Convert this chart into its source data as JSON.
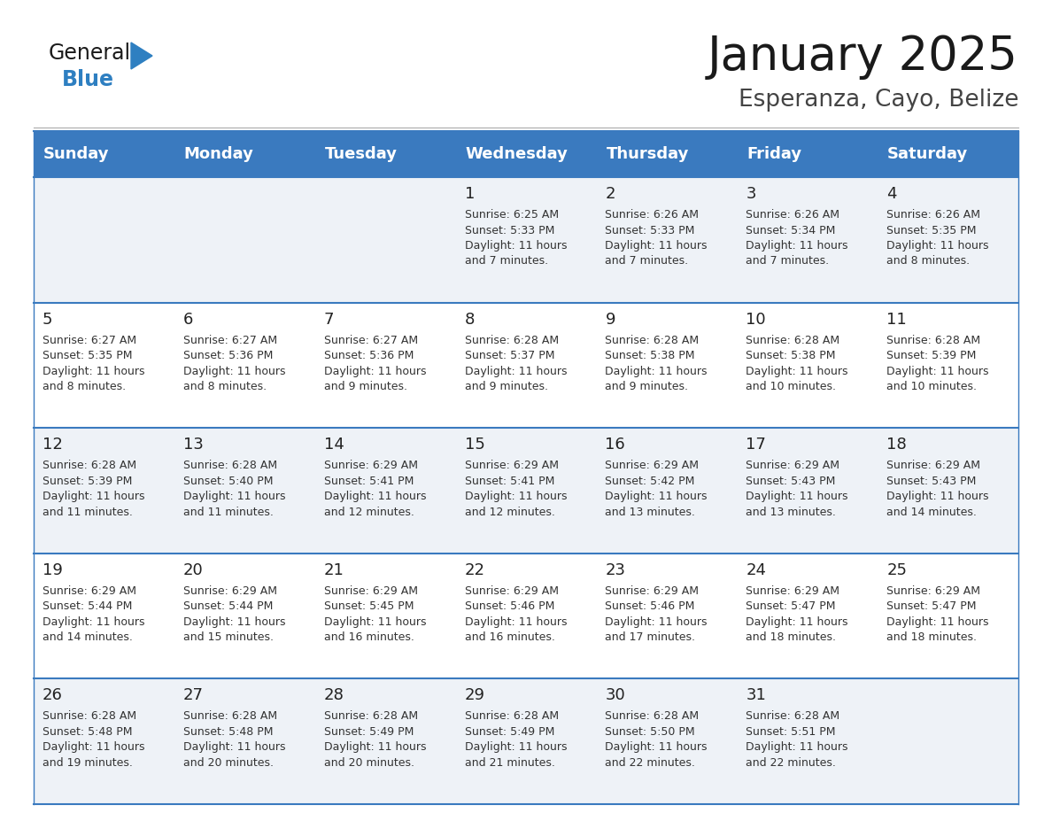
{
  "title": "January 2025",
  "subtitle": "Esperanza, Cayo, Belize",
  "days_of_week": [
    "Sunday",
    "Monday",
    "Tuesday",
    "Wednesday",
    "Thursday",
    "Friday",
    "Saturday"
  ],
  "header_bg": "#3a7abf",
  "header_text": "#ffffff",
  "row_bg_even": "#eef2f7",
  "row_bg_odd": "#ffffff",
  "separator_color": "#3a7abf",
  "day_num_color": "#222222",
  "cell_text_color": "#333333",
  "title_color": "#1a1a1a",
  "subtitle_color": "#444444",
  "logo_general_color": "#1a1a1a",
  "logo_blue_color": "#2e7fc1",
  "calendar_data": [
    [
      {
        "day": "",
        "sunrise": "",
        "sunset": "",
        "daylight": ""
      },
      {
        "day": "",
        "sunrise": "",
        "sunset": "",
        "daylight": ""
      },
      {
        "day": "",
        "sunrise": "",
        "sunset": "",
        "daylight": ""
      },
      {
        "day": "1",
        "sunrise": "6:25 AM",
        "sunset": "5:33 PM",
        "daylight": "11 hours and 7 minutes."
      },
      {
        "day": "2",
        "sunrise": "6:26 AM",
        "sunset": "5:33 PM",
        "daylight": "11 hours and 7 minutes."
      },
      {
        "day": "3",
        "sunrise": "6:26 AM",
        "sunset": "5:34 PM",
        "daylight": "11 hours and 7 minutes."
      },
      {
        "day": "4",
        "sunrise": "6:26 AM",
        "sunset": "5:35 PM",
        "daylight": "11 hours and 8 minutes."
      }
    ],
    [
      {
        "day": "5",
        "sunrise": "6:27 AM",
        "sunset": "5:35 PM",
        "daylight": "11 hours and 8 minutes."
      },
      {
        "day": "6",
        "sunrise": "6:27 AM",
        "sunset": "5:36 PM",
        "daylight": "11 hours and 8 minutes."
      },
      {
        "day": "7",
        "sunrise": "6:27 AM",
        "sunset": "5:36 PM",
        "daylight": "11 hours and 9 minutes."
      },
      {
        "day": "8",
        "sunrise": "6:28 AM",
        "sunset": "5:37 PM",
        "daylight": "11 hours and 9 minutes."
      },
      {
        "day": "9",
        "sunrise": "6:28 AM",
        "sunset": "5:38 PM",
        "daylight": "11 hours and 9 minutes."
      },
      {
        "day": "10",
        "sunrise": "6:28 AM",
        "sunset": "5:38 PM",
        "daylight": "11 hours and 10 minutes."
      },
      {
        "day": "11",
        "sunrise": "6:28 AM",
        "sunset": "5:39 PM",
        "daylight": "11 hours and 10 minutes."
      }
    ],
    [
      {
        "day": "12",
        "sunrise": "6:28 AM",
        "sunset": "5:39 PM",
        "daylight": "11 hours and 11 minutes."
      },
      {
        "day": "13",
        "sunrise": "6:28 AM",
        "sunset": "5:40 PM",
        "daylight": "11 hours and 11 minutes."
      },
      {
        "day": "14",
        "sunrise": "6:29 AM",
        "sunset": "5:41 PM",
        "daylight": "11 hours and 12 minutes."
      },
      {
        "day": "15",
        "sunrise": "6:29 AM",
        "sunset": "5:41 PM",
        "daylight": "11 hours and 12 minutes."
      },
      {
        "day": "16",
        "sunrise": "6:29 AM",
        "sunset": "5:42 PM",
        "daylight": "11 hours and 13 minutes."
      },
      {
        "day": "17",
        "sunrise": "6:29 AM",
        "sunset": "5:43 PM",
        "daylight": "11 hours and 13 minutes."
      },
      {
        "day": "18",
        "sunrise": "6:29 AM",
        "sunset": "5:43 PM",
        "daylight": "11 hours and 14 minutes."
      }
    ],
    [
      {
        "day": "19",
        "sunrise": "6:29 AM",
        "sunset": "5:44 PM",
        "daylight": "11 hours and 14 minutes."
      },
      {
        "day": "20",
        "sunrise": "6:29 AM",
        "sunset": "5:44 PM",
        "daylight": "11 hours and 15 minutes."
      },
      {
        "day": "21",
        "sunrise": "6:29 AM",
        "sunset": "5:45 PM",
        "daylight": "11 hours and 16 minutes."
      },
      {
        "day": "22",
        "sunrise": "6:29 AM",
        "sunset": "5:46 PM",
        "daylight": "11 hours and 16 minutes."
      },
      {
        "day": "23",
        "sunrise": "6:29 AM",
        "sunset": "5:46 PM",
        "daylight": "11 hours and 17 minutes."
      },
      {
        "day": "24",
        "sunrise": "6:29 AM",
        "sunset": "5:47 PM",
        "daylight": "11 hours and 18 minutes."
      },
      {
        "day": "25",
        "sunrise": "6:29 AM",
        "sunset": "5:47 PM",
        "daylight": "11 hours and 18 minutes."
      }
    ],
    [
      {
        "day": "26",
        "sunrise": "6:28 AM",
        "sunset": "5:48 PM",
        "daylight": "11 hours and 19 minutes."
      },
      {
        "day": "27",
        "sunrise": "6:28 AM",
        "sunset": "5:48 PM",
        "daylight": "11 hours and 20 minutes."
      },
      {
        "day": "28",
        "sunrise": "6:28 AM",
        "sunset": "5:49 PM",
        "daylight": "11 hours and 20 minutes."
      },
      {
        "day": "29",
        "sunrise": "6:28 AM",
        "sunset": "5:49 PM",
        "daylight": "11 hours and 21 minutes."
      },
      {
        "day": "30",
        "sunrise": "6:28 AM",
        "sunset": "5:50 PM",
        "daylight": "11 hours and 22 minutes."
      },
      {
        "day": "31",
        "sunrise": "6:28 AM",
        "sunset": "5:51 PM",
        "daylight": "11 hours and 22 minutes."
      },
      {
        "day": "",
        "sunrise": "",
        "sunset": "",
        "daylight": ""
      }
    ]
  ]
}
